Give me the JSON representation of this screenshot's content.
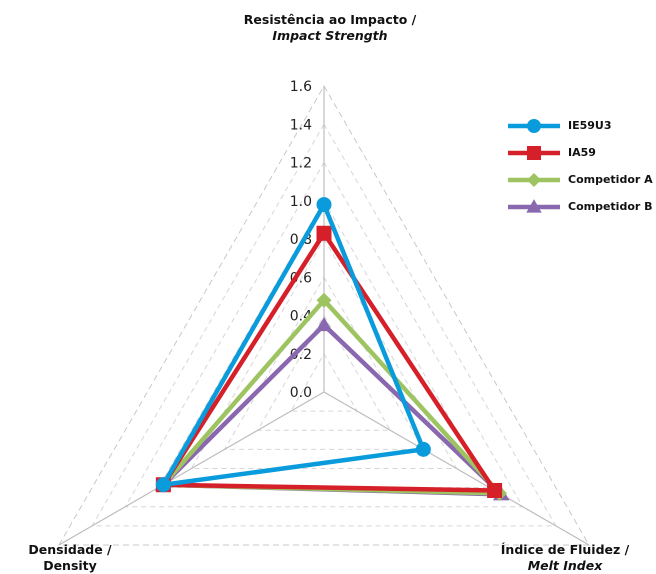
{
  "chart_data": {
    "type": "radar",
    "axes": [
      {
        "label": "Resistência ao Impacto /",
        "label_en": "Impact Strength"
      },
      {
        "label": "Índice de Fluidez /",
        "label_en": "Melt Index"
      },
      {
        "label": "Densidade /",
        "label_en": "Density"
      }
    ],
    "ticks": [
      "0.0",
      "0.2",
      "0.4",
      "0.6",
      "0.8",
      "1.0",
      "1.2",
      "1.4",
      "1.6"
    ],
    "rlim": [
      0,
      1.6
    ],
    "grid": true,
    "legend_position": "top-right",
    "series": [
      {
        "name": "IE59U3",
        "color": "#0a9bdc",
        "marker": "circle",
        "values": [
          0.98,
          0.6,
          0.97
        ]
      },
      {
        "name": "IA59",
        "color": "#d5202a",
        "marker": "square",
        "values": [
          0.83,
          1.03,
          0.97
        ]
      },
      {
        "name": "Competidor A",
        "color": "#9dc460",
        "marker": "diamond",
        "values": [
          0.48,
          1.06,
          0.97
        ]
      },
      {
        "name": "Competidor B",
        "color": "#8a68b0",
        "marker": "triangle",
        "values": [
          0.35,
          1.07,
          0.97
        ]
      }
    ]
  }
}
